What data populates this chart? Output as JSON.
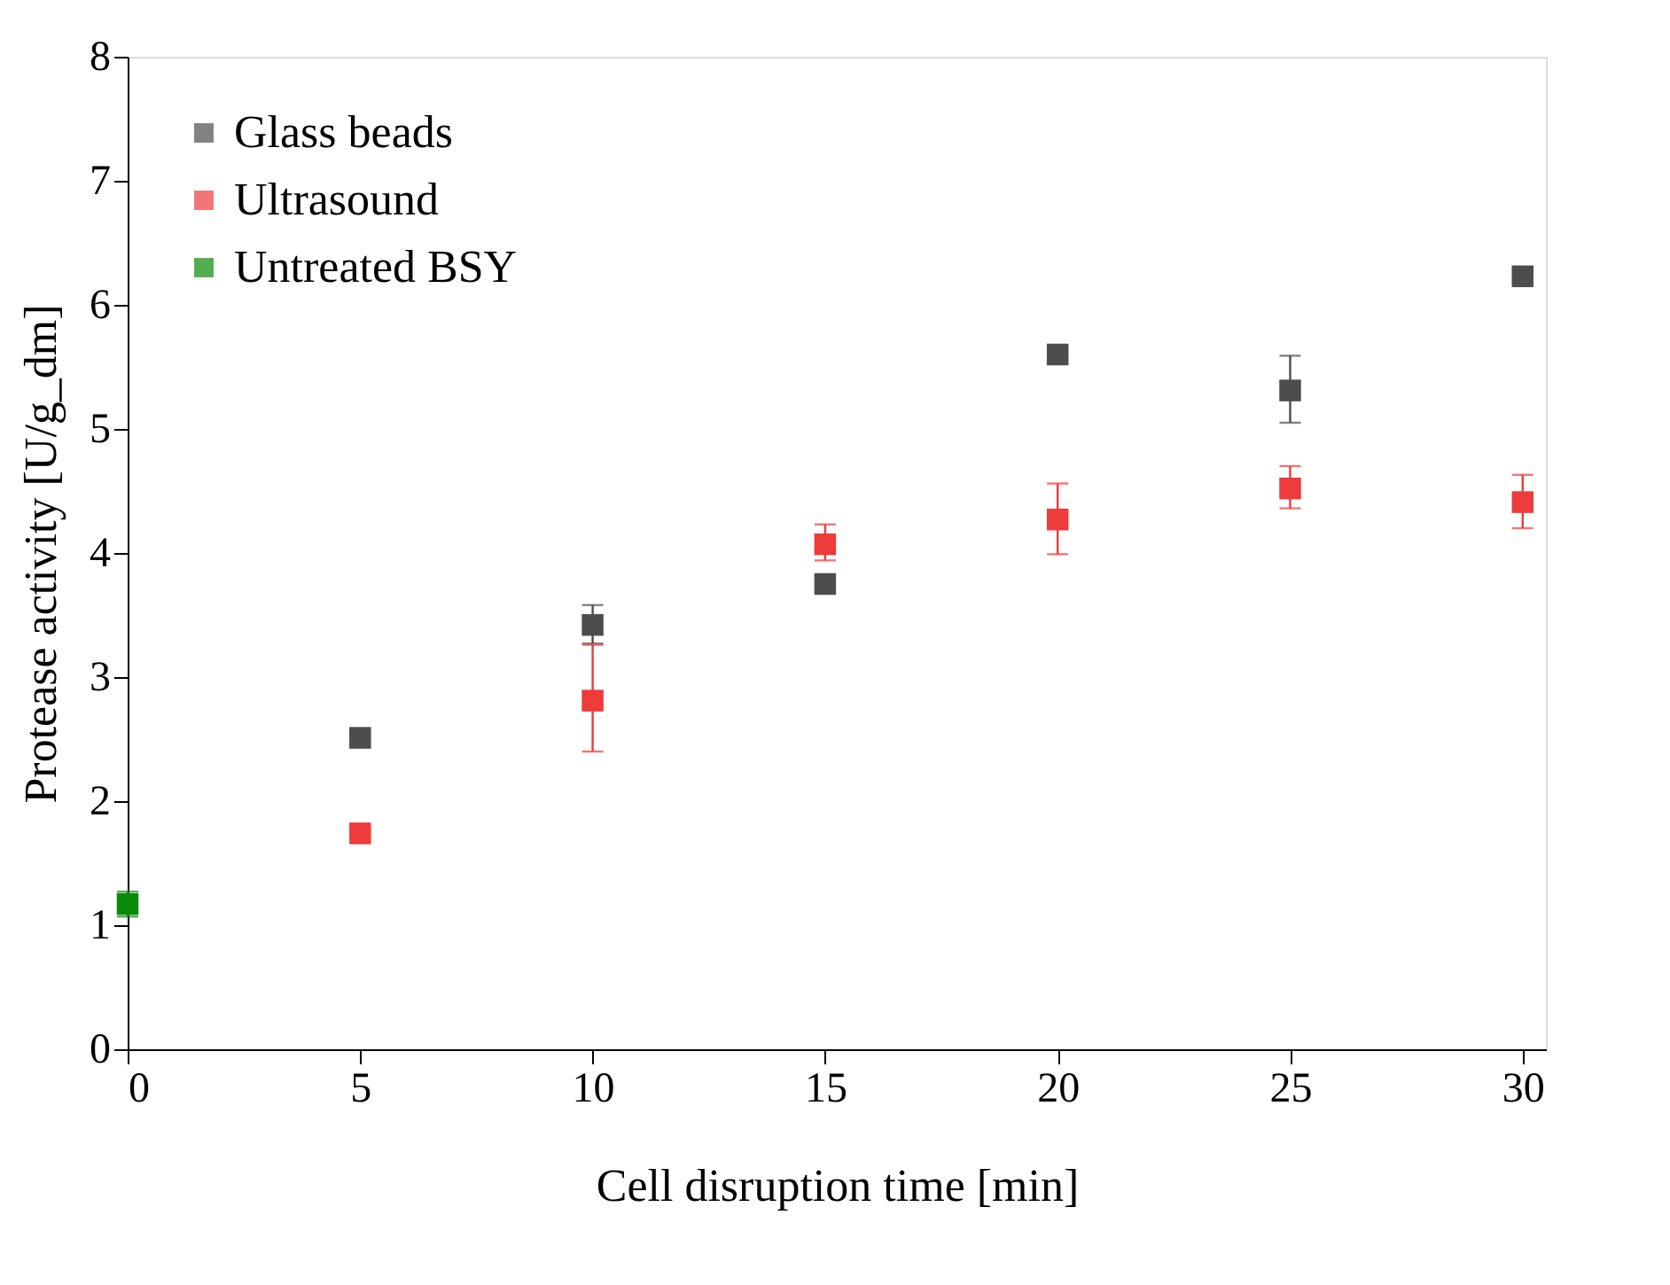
{
  "chart_data": {
    "type": "scatter",
    "xlabel": "Cell disruption time [min]",
    "ylabel": "Protease activity [U/g_dm]",
    "xlim": [
      0,
      30.5
    ],
    "xticks": [
      0,
      5,
      10,
      15,
      20,
      25,
      30
    ],
    "ylim": [
      0,
      8
    ],
    "yticks": [
      0,
      1,
      2,
      3,
      4,
      5,
      6,
      7,
      8
    ],
    "grid": false,
    "legend": "top left",
    "marker": "square",
    "series": [
      {
        "name": "Glass beads",
        "color": "#4d4d4d",
        "x": [
          5,
          10,
          15,
          20,
          25,
          30
        ],
        "values": [
          2.51,
          3.42,
          3.75,
          5.6,
          5.31,
          6.23
        ],
        "errors": [
          0.03,
          [
            3.27,
            3.58
          ],
          0.06,
          0.07,
          [
            5.05,
            5.59
          ],
          0.05
        ]
      },
      {
        "name": "Ultrasound",
        "color": "#ee3b3b",
        "x": [
          5,
          10,
          15,
          20,
          25,
          30
        ],
        "values": [
          1.74,
          2.81,
          4.07,
          4.27,
          4.52,
          4.41
        ],
        "errors": [
          0.03,
          [
            2.4,
            3.26
          ],
          [
            3.94,
            4.23
          ],
          [
            3.99,
            4.56
          ],
          [
            4.36,
            4.7
          ],
          [
            4.2,
            4.63
          ]
        ]
      },
      {
        "name": "Untreated BSY",
        "color": "#0a8a0a",
        "x": [
          0
        ],
        "values": [
          1.17
        ],
        "errors": [
          0.1
        ]
      }
    ]
  }
}
